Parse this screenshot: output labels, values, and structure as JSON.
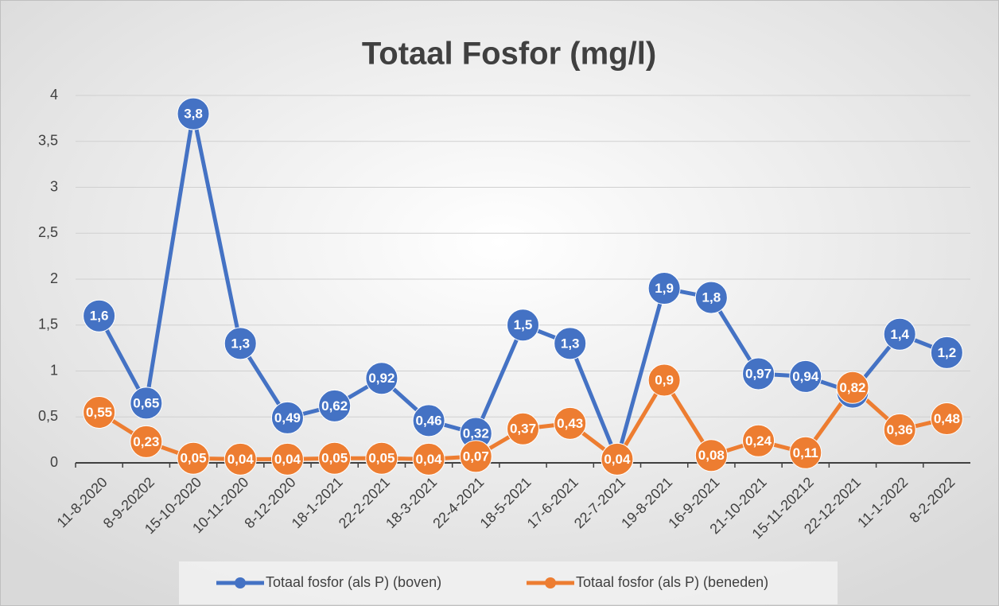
{
  "chart_data": {
    "type": "line",
    "title": "Totaal Fosfor (mg/l)",
    "categories": [
      "11-8-2020",
      "8-9-20202",
      "15-10-2020",
      "10-11-2020",
      "8-12-2020",
      "18-1-2021",
      "22-2-2021",
      "18-3-2021",
      "22-4-2021",
      "18-5-2021",
      "17-6-2021",
      "22-7-2021",
      "19-8-2021",
      "16-9-2021",
      "21-10-2021",
      "15-11-20212",
      "22-12-2021",
      "11-1-2022",
      "8-2-2022"
    ],
    "series": [
      {
        "name": "Totaal fosfor (als P) (boven)",
        "color": "#4472c4",
        "values": [
          1.6,
          0.65,
          3.8,
          1.3,
          0.49,
          0.62,
          0.92,
          0.46,
          0.32,
          1.5,
          1.3,
          0.04,
          1.9,
          1.8,
          0.97,
          0.94,
          0.77,
          1.4,
          1.2
        ],
        "value_labels": [
          "1,6",
          "0,65",
          "3,8",
          "1,3",
          "0,49",
          "0,62",
          "0,92",
          "0,46",
          "0,32",
          "1,5",
          "1,3",
          null,
          "1,9",
          "1,8",
          "0,97",
          "0,94",
          "0,77",
          "1,4",
          "1,2"
        ]
      },
      {
        "name": "Totaal fosfor (als P) (beneden)",
        "color": "#ed7d31",
        "values": [
          0.55,
          0.23,
          0.05,
          0.04,
          0.04,
          0.05,
          0.05,
          0.04,
          0.07,
          0.37,
          0.43,
          0.04,
          0.9,
          0.08,
          0.24,
          0.11,
          0.82,
          0.36,
          0.48
        ],
        "value_labels": [
          "0,55",
          "0,23",
          "0,05",
          "0,04",
          "0,04",
          "0,05",
          "0,05",
          "0,04",
          "0,07",
          "0,37",
          "0,43",
          "0,04",
          "0,9",
          "0,08",
          "0,24",
          "0,11",
          "0,82",
          "0,36",
          "0,48"
        ]
      }
    ],
    "ylim": [
      0,
      4
    ],
    "yticks": [
      0,
      {
        "value": 0.5,
        "label": "0,5"
      },
      1,
      {
        "value": 1.5,
        "label": "1,5"
      },
      2,
      {
        "value": 2.5,
        "label": "2,5"
      },
      3,
      {
        "value": 3.5,
        "label": "3,5"
      },
      4
    ],
    "grid": true,
    "legend": "bottom"
  }
}
